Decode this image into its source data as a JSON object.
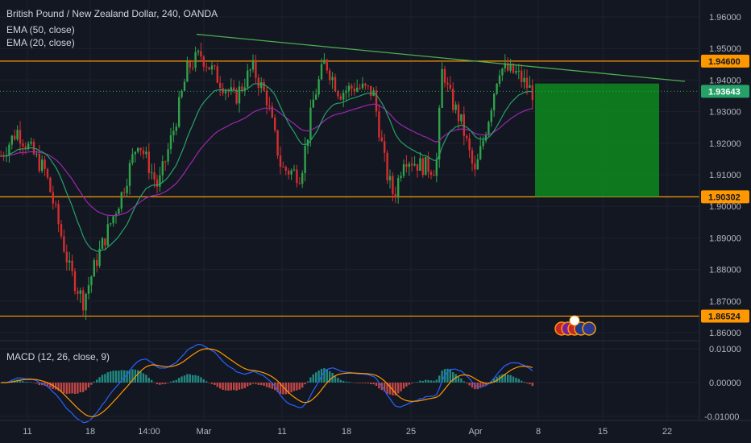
{
  "legend": {
    "title": "British Pound / New Zealand Dollar, 240, OANDA",
    "ema50": "EMA (50, close)",
    "ema20": "EMA (20, close)",
    "macd": "MACD (12, 26, close, 9)"
  },
  "colors": {
    "background": "#131722",
    "up": "#2fa24a",
    "down": "#d32f2f",
    "ema50": "#9c27b0",
    "ema20": "#26a269",
    "trendline": "#4caf50",
    "level": "#ff9800",
    "target_zone": "#0e8a1e",
    "macd_line": "#2962ff",
    "signal_line": "#ff9800"
  },
  "chart_data": {
    "type": "candlestick",
    "price_axis": {
      "range": [
        1.855,
        1.968
      ],
      "ticks": [
        "1.96000",
        "1.95000",
        "1.94000",
        "1.93000",
        "1.92000",
        "1.91000",
        "1.90000",
        "1.89000",
        "1.88000",
        "1.87000",
        "1.86000"
      ]
    },
    "time_axis": {
      "ticks": [
        "11",
        "18",
        "14:00",
        "Mar",
        "11",
        "18",
        "25",
        "Apr",
        "8",
        "15",
        "22"
      ]
    },
    "levels": [
      {
        "label": "1.94600",
        "value": 1.946
      },
      {
        "label": "1.90302",
        "value": 1.90302
      },
      {
        "label": "1.86524",
        "value": 1.86524
      }
    ],
    "current_price": {
      "label": "1.93643",
      "value": 1.93643
    },
    "trendline": {
      "from_price": 1.9545,
      "to_price": 1.9396
    },
    "target_zone": {
      "top": 1.9389,
      "bottom": 1.903
    },
    "macd_axis": {
      "range": [
        -0.012,
        0.013
      ],
      "ticks": [
        "0.01000",
        "0.00000",
        "-0.01000"
      ]
    }
  }
}
